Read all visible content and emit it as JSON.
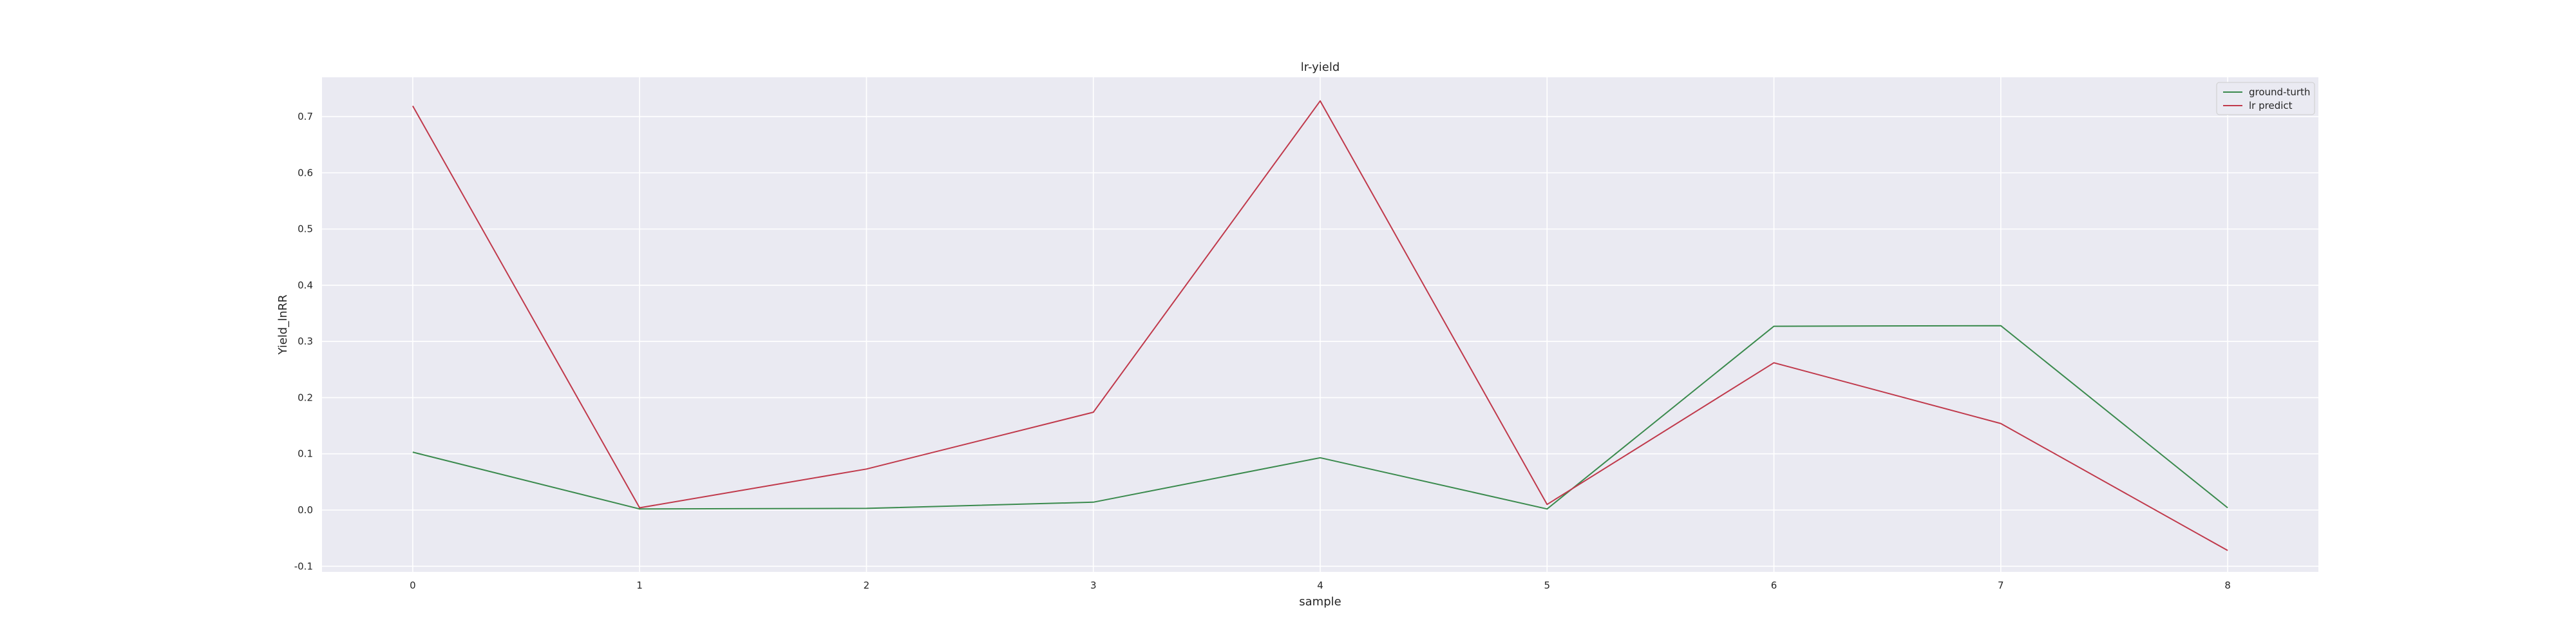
{
  "chart_data": {
    "type": "line",
    "title": "lr-yield",
    "xlabel": "sample",
    "ylabel": "Yield_lnRR",
    "x": [
      0,
      1,
      2,
      3,
      4,
      5,
      6,
      7,
      8
    ],
    "xlim": [
      -0.4,
      8.4
    ],
    "ylim": [
      -0.11,
      0.77
    ],
    "xticks": [
      "0",
      "1",
      "2",
      "3",
      "4",
      "5",
      "6",
      "7",
      "8"
    ],
    "yticks": [
      "-0.1",
      "0.0",
      "0.1",
      "0.2",
      "0.3",
      "0.4",
      "0.5",
      "0.6",
      "0.7"
    ],
    "grid": true,
    "legend_position": "top-right",
    "series": [
      {
        "name": "ground-turth",
        "color": "#3a8a4d",
        "values": [
          0.103,
          0.002,
          0.003,
          0.014,
          0.093,
          0.002,
          0.327,
          0.328,
          0.004
        ]
      },
      {
        "name": "lr predict",
        "color": "#c0394b",
        "values": [
          0.719,
          0.004,
          0.073,
          0.174,
          0.728,
          0.01,
          0.262,
          0.154,
          -0.072
        ]
      }
    ]
  }
}
